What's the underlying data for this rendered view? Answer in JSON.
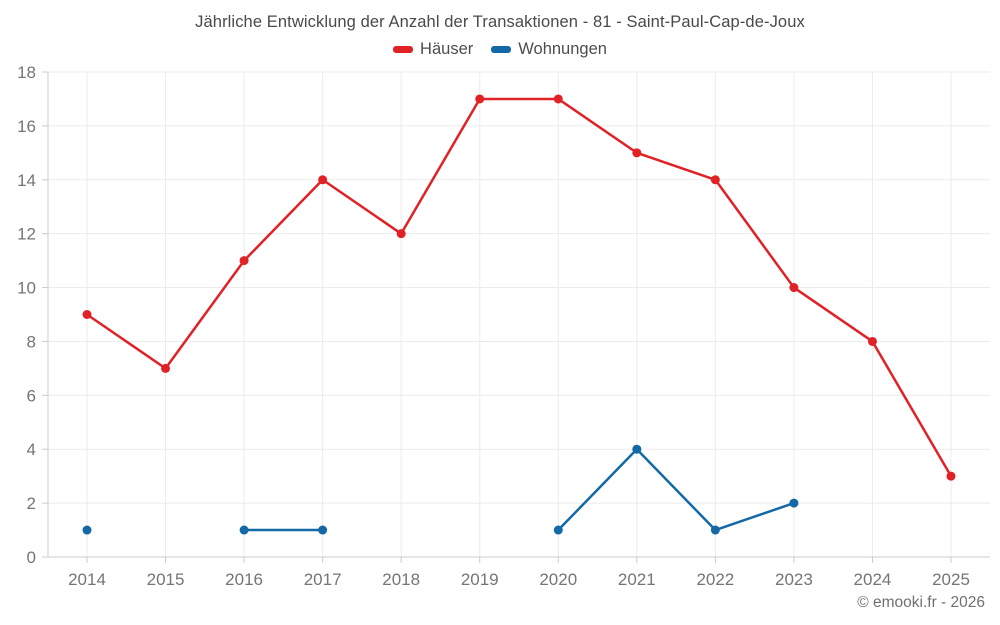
{
  "page": {
    "background": "#ffffff"
  },
  "chart_data": {
    "type": "line",
    "title": "Jährliche Entwicklung der Anzahl der Transaktionen - 81 - Saint-Paul-Cap-de-Joux",
    "categories": [
      "2014",
      "2015",
      "2016",
      "2017",
      "2018",
      "2019",
      "2020",
      "2021",
      "2022",
      "2023",
      "2024",
      "2025"
    ],
    "series": [
      {
        "name": "Häuser",
        "color": "#e02227",
        "values": [
          9,
          7,
          11,
          14,
          12,
          17,
          17,
          15,
          14,
          10,
          8,
          3
        ]
      },
      {
        "name": "Wohnungen",
        "color": "#1369a6",
        "values": [
          1,
          null,
          1,
          1,
          null,
          null,
          1,
          4,
          1,
          2,
          null,
          null
        ]
      }
    ],
    "xlabel": "",
    "ylabel": "",
    "ylim": [
      0,
      18
    ],
    "ytick_step": 2,
    "grid": true,
    "legend_position": "top"
  },
  "style": {
    "grid_color": "#ebebeb",
    "axis_color": "#cccccc",
    "tick_label_color": "#757575",
    "title_color": "#4a4a4a"
  },
  "footer": {
    "credit": "© emooki.fr - 2026"
  }
}
